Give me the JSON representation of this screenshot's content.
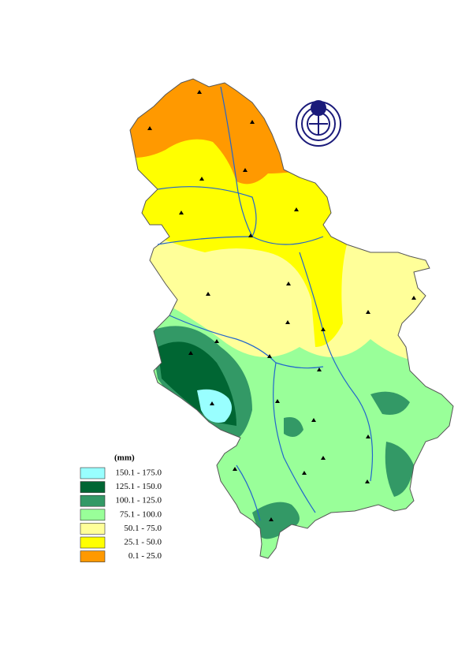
{
  "legend": {
    "title": "(mm)",
    "items": [
      {
        "label": "150.1 - 175.0",
        "color": "#99ffff"
      },
      {
        "label": "125.1 - 150.0",
        "color": "#006633"
      },
      {
        "label": "100.1 - 125.0",
        "color": "#339966"
      },
      {
        "label": "75.1 - 100.0",
        "color": "#99ff99"
      },
      {
        "label": "50.1 - 75.0",
        "color": "#ffff99"
      },
      {
        "label": "25.1 - 50.0",
        "color": "#ffff00"
      },
      {
        "label": "0.1 - 25.0",
        "color": "#ff9900"
      }
    ]
  }
}
